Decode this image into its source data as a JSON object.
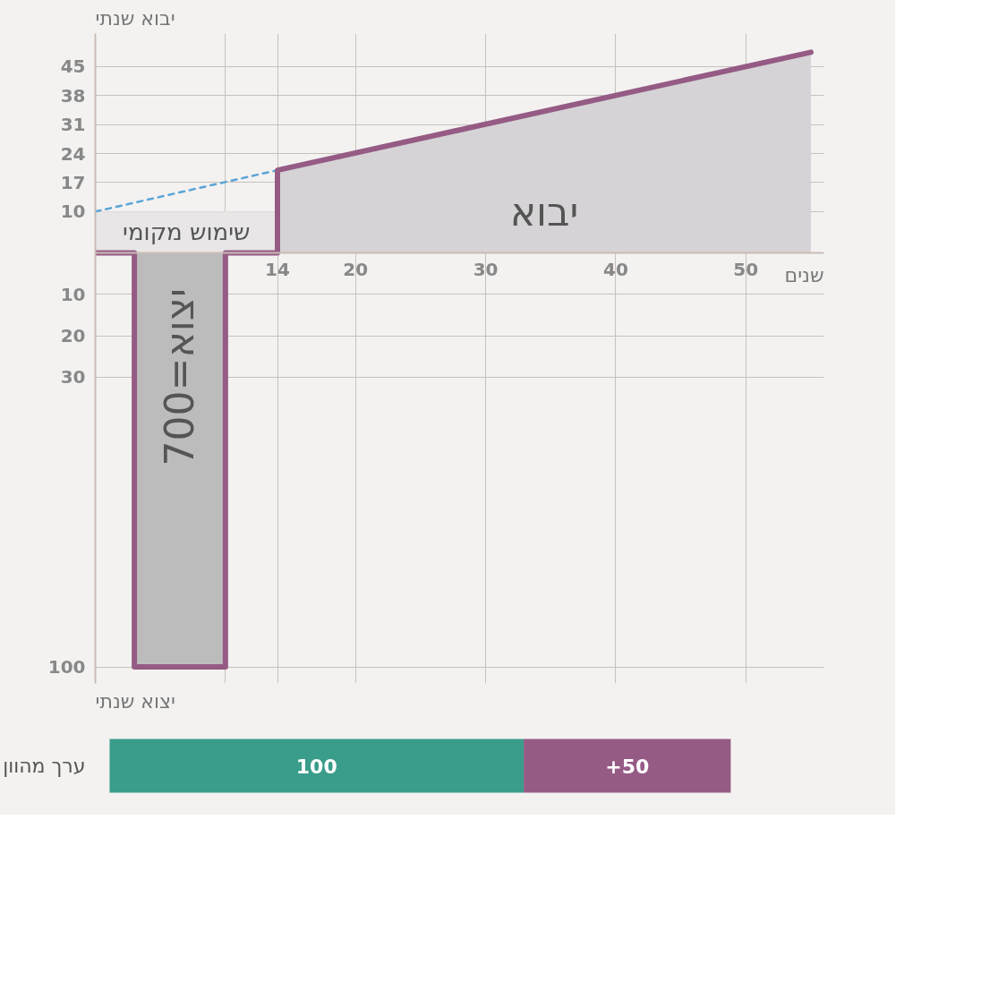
{
  "chart_data": [
    {
      "type": "line",
      "ylabel": "יבוא שנתי",
      "xlabel": "שנים",
      "xlim": [
        0,
        56
      ],
      "ylim": [
        -104,
        53
      ],
      "xticks": [
        {
          "value": 10,
          "label": null
        },
        14,
        20,
        30,
        40,
        50
      ],
      "yticks": [
        {
          "value": -100,
          "label": "100"
        },
        {
          "value": -30,
          "label": "30"
        },
        {
          "value": -20,
          "label": "20"
        },
        {
          "value": -10,
          "label": "10"
        },
        10,
        17,
        24,
        31,
        38,
        45
      ],
      "grid": true,
      "series": [
        {
          "type": "area",
          "color": "#d5d3d5",
          "x": [
            14,
            55
          ],
          "values": [
            20,
            48.5
          ]
        },
        {
          "type": "area",
          "color": "#e8e6e6",
          "x": [
            0,
            14
          ],
          "values": [
            10,
            10
          ]
        },
        {
          "type": "area",
          "color": "#bdbcbd",
          "x": [
            3,
            10
          ],
          "values": [
            -100,
            -100
          ]
        },
        {
          "type": "line",
          "color": "#5aa5d6",
          "line_style": "dashed",
          "x": [
            0,
            14
          ],
          "values": [
            10,
            20
          ]
        },
        {
          "type": "line",
          "color": "#955b85",
          "x": [
            0,
            3,
            3,
            10,
            10,
            14,
            14,
            55
          ],
          "values": [
            0,
            0,
            -100,
            -100,
            0,
            0,
            20,
            48.5
          ]
        }
      ],
      "annotations": [
        "יבוא",
        "שימוש מקומי",
        "יצוא=700",
        "יצוא שנתי"
      ]
    },
    {
      "type": "bar",
      "orientation": "horizontal",
      "stacked": true,
      "categories": [
        "ערך מהוון"
      ],
      "tick_labels": "y",
      "series": [
        {
          "color": "#3a9c8a",
          "values": [
            100
          ],
          "value_labels": [
            "100"
          ]
        },
        {
          "color": "#955b85",
          "values": [
            50
          ],
          "value_labels": [
            "+50"
          ]
        }
      ]
    }
  ]
}
